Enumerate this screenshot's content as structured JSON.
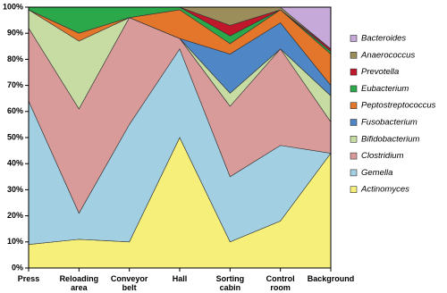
{
  "chart_data": {
    "type": "stacked-area",
    "categories": [
      "Press",
      "Reloading area",
      "Conveyor belt",
      "Hall",
      "Sorting cabin",
      "Control room",
      "Background"
    ],
    "ylim": [
      0,
      100
    ],
    "yticks": [
      {
        "value": 0,
        "label": "0%"
      },
      {
        "value": 10,
        "label": "10%"
      },
      {
        "value": 20,
        "label": "20%"
      },
      {
        "value": 30,
        "label": "30%"
      },
      {
        "value": 40,
        "label": "40%"
      },
      {
        "value": 50,
        "label": "50%"
      },
      {
        "value": 60,
        "label": "60%"
      },
      {
        "value": 70,
        "label": "70%"
      },
      {
        "value": 80,
        "label": "80%"
      },
      {
        "value": 90,
        "label": "90%"
      },
      {
        "value": 100,
        "label": "100%"
      }
    ],
    "legend": "right",
    "series": [
      {
        "name": "Actinomyces",
        "color": "#f6f07a",
        "values": [
          9,
          11,
          10,
          50,
          10,
          18,
          44
        ]
      },
      {
        "name": "Gemella",
        "color": "#a2d0e2",
        "values": [
          55,
          10,
          45,
          34,
          25,
          29,
          0
        ]
      },
      {
        "name": "Clostridium",
        "color": "#d99b99",
        "values": [
          28,
          40,
          41,
          4,
          27,
          37,
          12
        ]
      },
      {
        "name": "Bifidobacterium",
        "color": "#c6dca2",
        "values": [
          7,
          26,
          0,
          0,
          5,
          0,
          10
        ]
      },
      {
        "name": "Fusobacterium",
        "color": "#4f86c6",
        "values": [
          0,
          0,
          0,
          0,
          15,
          10,
          4
        ]
      },
      {
        "name": "Peptostreptococcus",
        "color": "#e3762b",
        "values": [
          0,
          3,
          0,
          11,
          4,
          5,
          12
        ]
      },
      {
        "name": "Eubacterium",
        "color": "#2aa84a",
        "values": [
          1,
          10,
          4,
          1,
          3,
          0,
          1
        ]
      },
      {
        "name": "Prevotella",
        "color": "#c0172a",
        "values": [
          0,
          0,
          0,
          0,
          4,
          0,
          1
        ]
      },
      {
        "name": "Anaerococcus",
        "color": "#9b8e5a",
        "values": [
          0,
          0,
          0,
          0,
          7,
          1,
          0
        ]
      },
      {
        "name": "Bacteroides",
        "color": "#c6a9d9",
        "values": [
          0,
          0,
          0,
          0,
          0,
          0,
          16
        ]
      }
    ]
  }
}
